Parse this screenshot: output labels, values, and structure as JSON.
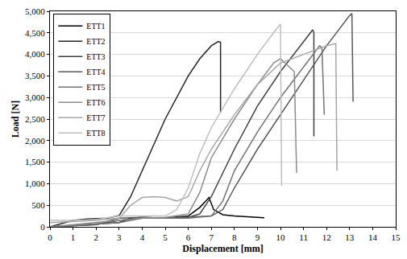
{
  "chart_data": {
    "type": "line",
    "x_label": "Displacement [mm]",
    "y_label": "Load [N]",
    "xlim": [
      0,
      15
    ],
    "xticks": [
      0,
      1,
      2,
      3,
      4,
      5,
      6,
      7,
      8,
      9,
      10,
      11,
      12,
      13,
      14,
      15
    ],
    "ylim": [
      0,
      5000
    ],
    "yticks": [
      0,
      500,
      {
        "value": 1000,
        "label": "1,000"
      },
      {
        "value": 1500,
        "label": "1,500"
      },
      {
        "value": 2000,
        "label": "2,000"
      },
      {
        "value": 2500,
        "label": "2,500"
      },
      {
        "value": 3000,
        "label": "3,000"
      },
      {
        "value": 3500,
        "label": "3,500"
      },
      {
        "value": 4000,
        "label": "4,000"
      },
      {
        "value": 4500,
        "label": "4,500"
      },
      {
        "value": 5000,
        "label": "5,000"
      }
    ],
    "grid": true,
    "legend": "top-left",
    "series": [
      {
        "name": "ETT1",
        "color": "#000000",
        "x": [
          0,
          1,
          2,
          3,
          3.5,
          4,
          5,
          6,
          6.5,
          6.9,
          7.1,
          7.5,
          8,
          9,
          9.3
        ],
        "values": [
          0,
          30,
          60,
          100,
          200,
          220,
          200,
          250,
          450,
          680,
          400,
          280,
          250,
          220,
          210
        ]
      },
      {
        "name": "ETT2",
        "color": "#262626",
        "x": [
          0,
          1,
          1.6,
          2,
          2.5,
          3,
          3.5,
          4,
          5,
          6,
          6.5,
          7,
          7.3,
          7.4,
          7.4
        ],
        "values": [
          0,
          150,
          180,
          190,
          200,
          260,
          700,
          1300,
          2500,
          3500,
          3900,
          4200,
          4300,
          4280,
          2650
        ]
      },
      {
        "name": "ETT3",
        "color": "#404040",
        "x": [
          0,
          2,
          3,
          4,
          5,
          6,
          6.5,
          7,
          8,
          9,
          10,
          11,
          11.4,
          11.45,
          11.45
        ],
        "values": [
          0,
          50,
          150,
          200,
          200,
          220,
          300,
          700,
          1800,
          2800,
          3600,
          4300,
          4570,
          4500,
          2100
        ]
      },
      {
        "name": "ETT4",
        "color": "#595959",
        "x": [
          0,
          2,
          3,
          4,
          5,
          6,
          7,
          7.5,
          8,
          9,
          10,
          11,
          12,
          13,
          13.1,
          13.15
        ],
        "values": [
          0,
          50,
          200,
          220,
          200,
          220,
          250,
          400,
          900,
          1800,
          2600,
          3400,
          4200,
          4900,
          4950,
          2900
        ]
      },
      {
        "name": "ETT5",
        "color": "#737373",
        "x": [
          0,
          3,
          4,
          6,
          7,
          7.5,
          8,
          9,
          10,
          11,
          11.7,
          11.8,
          11.9
        ],
        "values": [
          0,
          100,
          200,
          200,
          250,
          600,
          1300,
          2200,
          3000,
          3700,
          4200,
          4150,
          2600
        ]
      },
      {
        "name": "ETT6",
        "color": "#8c8c8c",
        "x": [
          0,
          3,
          4,
          5,
          6,
          6.5,
          7,
          8,
          9,
          9.7,
          10,
          10.3,
          10.6,
          10.7
        ],
        "values": [
          0,
          150,
          200,
          220,
          300,
          800,
          1600,
          2500,
          3300,
          3800,
          3900,
          3750,
          3600,
          1250
        ]
      },
      {
        "name": "ETT7",
        "color": "#a6a6a6",
        "x": [
          0,
          1,
          2,
          3,
          3.5,
          4,
          4.5,
          5,
          5.5,
          6,
          6.5,
          7,
          8,
          9,
          10,
          11,
          12,
          12.4,
          12.45
        ],
        "values": [
          100,
          120,
          150,
          200,
          500,
          680,
          700,
          680,
          600,
          700,
          1300,
          1800,
          2600,
          3300,
          3800,
          4000,
          4200,
          4250,
          1300
        ]
      },
      {
        "name": "ETT8",
        "color": "#bfbfbf",
        "x": [
          0,
          1,
          2,
          3,
          4,
          5,
          5.5,
          6,
          6.5,
          7,
          8,
          9,
          9.7,
          10,
          10.05
        ],
        "values": [
          150,
          150,
          170,
          250,
          250,
          250,
          400,
          900,
          1700,
          2300,
          3200,
          4000,
          4500,
          4700,
          950
        ]
      }
    ]
  }
}
